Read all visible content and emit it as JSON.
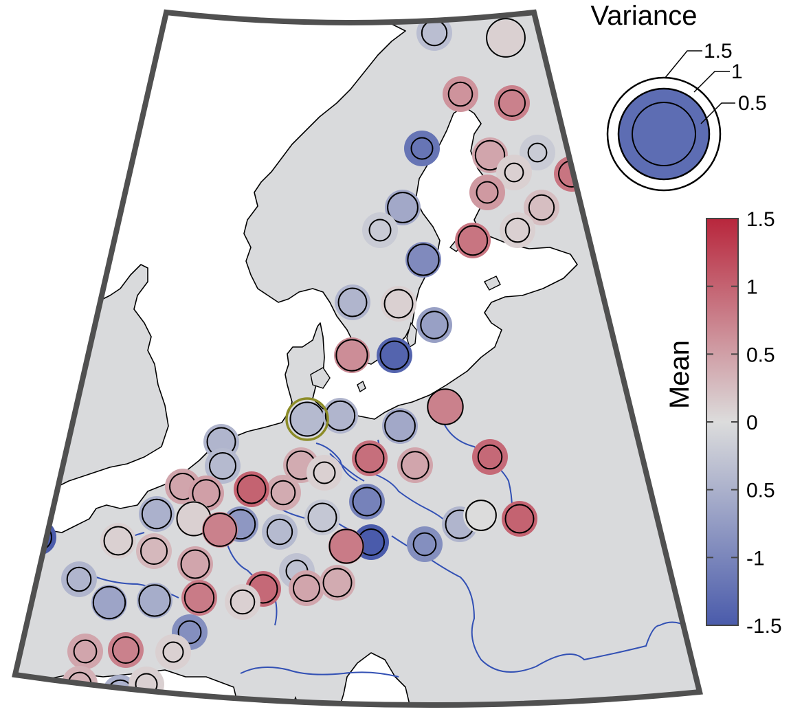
{
  "variance_legend": {
    "title": "Variance",
    "labels": [
      "1.5",
      "1",
      "0.5"
    ],
    "swatch_color": "#5d6db3"
  },
  "mean_colorbar": {
    "title": "Mean",
    "tick_labels": [
      "1.5",
      "1",
      "0.5",
      "0",
      "0.5",
      "-1",
      "-1.5"
    ],
    "colors": {
      "high": "#b8263c",
      "mid": "#dcdcdc",
      "low": "#4a5bab"
    }
  },
  "colors": {
    "land": "#d9dadc",
    "sea": "#ffffff",
    "frame": "#505050",
    "rivers": "#3250b4",
    "highlight_ring": "#8c8c28"
  },
  "stations": [
    {
      "id": 1,
      "mean": -0.35,
      "variance": 0.55
    },
    {
      "id": 2,
      "mean": 0.1,
      "variance": 1.3
    },
    {
      "id": 3,
      "mean": 0.6,
      "variance": 0.5
    },
    {
      "id": 4,
      "mean": 0.75,
      "variance": 0.6
    },
    {
      "id": 5,
      "mean": -1.2,
      "variance": 0.4
    },
    {
      "id": 6,
      "mean": 0.45,
      "variance": 0.75
    },
    {
      "id": 7,
      "mean": -0.2,
      "variance": 0.3
    },
    {
      "id": 8,
      "mean": 0.1,
      "variance": 0.3
    },
    {
      "id": 9,
      "mean": 0.85,
      "variance": 0.6
    },
    {
      "id": 10,
      "mean": 0.55,
      "variance": 0.4
    },
    {
      "id": 11,
      "mean": 0.25,
      "variance": 0.55
    },
    {
      "id": 12,
      "mean": -0.6,
      "variance": 0.8
    },
    {
      "id": 13,
      "mean": -0.2,
      "variance": 0.4
    },
    {
      "id": 14,
      "mean": 0.1,
      "variance": 0.5
    },
    {
      "id": 15,
      "mean": 0.85,
      "variance": 0.75
    },
    {
      "id": 16,
      "mean": -0.95,
      "variance": 0.85
    },
    {
      "id": 17,
      "mean": -0.45,
      "variance": 0.7
    },
    {
      "id": 18,
      "mean": 0.1,
      "variance": 0.7
    },
    {
      "id": 19,
      "mean": -0.7,
      "variance": 0.65
    },
    {
      "id": 20,
      "mean": 0.65,
      "variance": 0.85
    },
    {
      "id": 21,
      "mean": -1.4,
      "variance": 0.7
    },
    {
      "id": 22,
      "mean": -0.4,
      "variance": 1.0
    },
    {
      "id": 23,
      "mean": -0.45,
      "variance": 0.75
    },
    {
      "id": 24,
      "mean": 0.75,
      "variance": 1.1
    },
    {
      "id": 25,
      "mean": -0.6,
      "variance": 0.8
    },
    {
      "id": 26,
      "mean": -0.45,
      "variance": 0.7
    },
    {
      "id": 27,
      "mean": -0.4,
      "variance": 0.6
    },
    {
      "id": 28,
      "mean": 0.4,
      "variance": 0.7
    },
    {
      "id": 29,
      "mean": 0.95,
      "variance": 0.5
    },
    {
      "id": 30,
      "mean": 0.9,
      "variance": 0.7
    },
    {
      "id": 31,
      "mean": 0.1,
      "variance": 0.4
    },
    {
      "id": 32,
      "mean": 0.45,
      "variance": 0.65
    },
    {
      "id": 33,
      "mean": 0.45,
      "variance": 0.6
    },
    {
      "id": 34,
      "mean": 0.4,
      "variance": 0.5
    },
    {
      "id": 35,
      "mean": 1.0,
      "variance": 0.7
    },
    {
      "id": 36,
      "mean": 0.5,
      "variance": 0.65
    },
    {
      "id": 37,
      "mean": -1.05,
      "variance": 0.7
    },
    {
      "id": 38,
      "mean": -0.5,
      "variance": 0.75
    },
    {
      "id": 39,
      "mean": 0.1,
      "variance": 1.0
    },
    {
      "id": 40,
      "mean": 1.0,
      "variance": 0.7
    },
    {
      "id": 41,
      "mean": -0.8,
      "variance": 0.75
    },
    {
      "id": 42,
      "mean": -0.4,
      "variance": 0.55
    },
    {
      "id": 43,
      "mean": -0.25,
      "variance": 0.7
    },
    {
      "id": 44,
      "mean": 0.75,
      "variance": 0.95
    },
    {
      "id": 45,
      "mean": -1.5,
      "variance": 0.6
    },
    {
      "id": 46,
      "mean": -0.9,
      "variance": 0.45
    },
    {
      "id": 47,
      "mean": -0.45,
      "variance": 0.7
    },
    {
      "id": 48,
      "mean": 0.0,
      "variance": 0.8
    },
    {
      "id": 49,
      "mean": 0.8,
      "variance": 1.0
    },
    {
      "id": 50,
      "mean": -1.5,
      "variance": 0.6
    },
    {
      "id": 51,
      "mean": 0.1,
      "variance": 0.7
    },
    {
      "id": 52,
      "mean": 0.3,
      "variance": 0.6
    },
    {
      "id": 53,
      "mean": 0.45,
      "variance": 0.7
    },
    {
      "id": 54,
      "mean": -0.3,
      "variance": 0.4
    },
    {
      "id": 55,
      "mean": -0.45,
      "variance": 0.5
    },
    {
      "id": 56,
      "mean": 0.95,
      "variance": 0.7
    },
    {
      "id": 57,
      "mean": 0.45,
      "variance": 0.6
    },
    {
      "id": 58,
      "mean": -0.65,
      "variance": 0.9
    },
    {
      "id": 59,
      "mean": -0.55,
      "variance": 0.85
    },
    {
      "id": 60,
      "mean": 0.8,
      "variance": 0.75
    },
    {
      "id": 61,
      "mean": 0.4,
      "variance": 0.7
    },
    {
      "id": 62,
      "mean": 0.1,
      "variance": 0.5
    },
    {
      "id": 63,
      "mean": -0.9,
      "variance": 0.45
    },
    {
      "id": 64,
      "mean": 0.45,
      "variance": 0.45
    },
    {
      "id": 65,
      "mean": 0.75,
      "variance": 0.6
    },
    {
      "id": 66,
      "mean": 0.1,
      "variance": 0.35
    },
    {
      "id": 67,
      "mean": 0.35,
      "variance": 0.45
    },
    {
      "id": 68,
      "mean": -0.5,
      "variance": 0.55
    },
    {
      "id": 69,
      "mean": 0.1,
      "variance": 0.4
    }
  ]
}
